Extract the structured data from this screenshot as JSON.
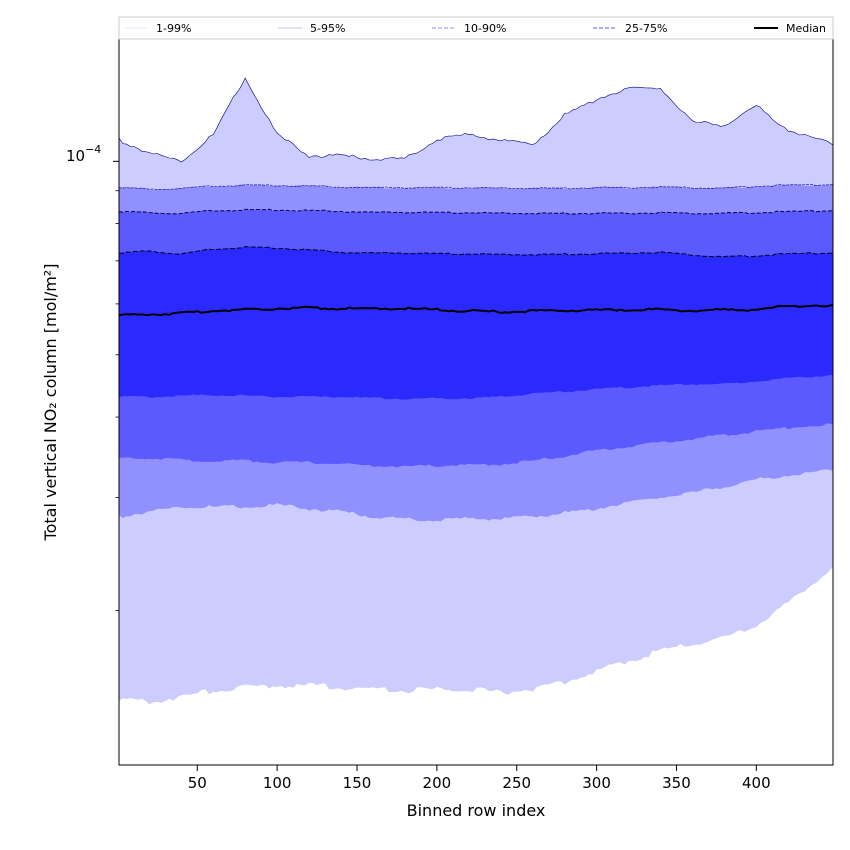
{
  "chart_data": {
    "type": "area",
    "title": "",
    "xlabel": "Binned row index",
    "ylabel": "Total vertical NO₂ column [mol/m²]",
    "yscale": "log",
    "xlim": [
      1,
      448
    ],
    "ylim": [
      1.15e-05,
      0.000155
    ],
    "xticks": [
      50,
      100,
      150,
      200,
      250,
      300,
      350,
      400
    ],
    "ytick_label_text": "10",
    "ytick_label_exponent": "−4",
    "ytick_major_value": 0.0001,
    "ytick_minor_values": [
      2e-05,
      3e-05,
      4e-05,
      5e-05,
      6e-05,
      7e-05,
      8e-05,
      9e-05
    ],
    "legend_location": "top",
    "colors": {
      "band_1_99": "#ccccff",
      "band_5_95": "#9090ff",
      "band_10_90": "#5a5aff",
      "band_25_75": "#2a2aff",
      "outline": "#000088",
      "median": "#000000"
    },
    "legend": [
      {
        "label": "1-99%",
        "style": "solid",
        "color": "#e6e6ff"
      },
      {
        "label": "5-95%",
        "style": "solid",
        "color": "#c0c0ff"
      },
      {
        "label": "10-90%",
        "style": "dashed",
        "color": "#9090ff"
      },
      {
        "label": "25-75%",
        "style": "dashed",
        "color": "#5a5aff"
      },
      {
        "label": "Median",
        "style": "solid",
        "color": "#000000"
      }
    ],
    "x": [
      1,
      20,
      40,
      60,
      80,
      100,
      120,
      140,
      160,
      180,
      200,
      220,
      240,
      260,
      280,
      300,
      320,
      340,
      360,
      380,
      400,
      420,
      448
    ],
    "series": [
      {
        "name": "p1",
        "values": [
          1.46e-05,
          1.44e-05,
          1.47e-05,
          1.5e-05,
          1.52e-05,
          1.53e-05,
          1.53e-05,
          1.52e-05,
          1.51e-05,
          1.5e-05,
          1.51e-05,
          1.51e-05,
          1.49e-05,
          1.51e-05,
          1.55e-05,
          1.61e-05,
          1.67e-05,
          1.73e-05,
          1.78e-05,
          1.81e-05,
          1.9e-05,
          2.05e-05,
          2.34e-05
        ]
      },
      {
        "name": "p5",
        "values": [
          2.8e-05,
          2.85e-05,
          2.9e-05,
          2.9e-05,
          2.9e-05,
          2.92e-05,
          2.88e-05,
          2.85e-05,
          2.8e-05,
          2.78e-05,
          2.76e-05,
          2.78e-05,
          2.78e-05,
          2.8e-05,
          2.84e-05,
          2.88e-05,
          2.95e-05,
          3e-05,
          3.05e-05,
          3.12e-05,
          3.2e-05,
          3.25e-05,
          3.3e-05
        ]
      },
      {
        "name": "p10",
        "values": [
          3.45e-05,
          3.45e-05,
          3.43e-05,
          3.42e-05,
          3.42e-05,
          3.4e-05,
          3.4e-05,
          3.38e-05,
          3.36e-05,
          3.35e-05,
          3.36e-05,
          3.37e-05,
          3.38e-05,
          3.42e-05,
          3.48e-05,
          3.55e-05,
          3.6e-05,
          3.65e-05,
          3.7e-05,
          3.75e-05,
          3.8e-05,
          3.85e-05,
          3.9e-05
        ]
      },
      {
        "name": "p25",
        "values": [
          4.3e-05,
          4.3e-05,
          4.32e-05,
          4.33e-05,
          4.32e-05,
          4.3e-05,
          4.3e-05,
          4.3e-05,
          4.28e-05,
          4.27e-05,
          4.28e-05,
          4.28e-05,
          4.3e-05,
          4.35e-05,
          4.38e-05,
          4.42e-05,
          4.45e-05,
          4.48e-05,
          4.5e-05,
          4.5e-05,
          4.55e-05,
          4.6e-05,
          4.65e-05
        ]
      },
      {
        "name": "p50",
        "values": [
          5.75e-05,
          5.78e-05,
          5.8e-05,
          5.85e-05,
          5.88e-05,
          5.9e-05,
          5.92e-05,
          5.9e-05,
          5.9e-05,
          5.9e-05,
          5.88e-05,
          5.85e-05,
          5.83e-05,
          5.85e-05,
          5.86e-05,
          5.87e-05,
          5.88e-05,
          5.88e-05,
          5.86e-05,
          5.87e-05,
          5.88e-05,
          5.95e-05,
          5.98e-05
        ]
      },
      {
        "name": "p75",
        "values": [
          7.2e-05,
          7.25e-05,
          7.18e-05,
          7.3e-05,
          7.35e-05,
          7.33e-05,
          7.28e-05,
          7.22e-05,
          7.2e-05,
          7.2e-05,
          7.18e-05,
          7.18e-05,
          7.16e-05,
          7.16e-05,
          7.17e-05,
          7.18e-05,
          7.2e-05,
          7.22e-05,
          7.15e-05,
          7.1e-05,
          7.13e-05,
          7.18e-05,
          7.2e-05
        ]
      },
      {
        "name": "p90",
        "values": [
          8.35e-05,
          8.32e-05,
          8.3e-05,
          8.38e-05,
          8.4e-05,
          8.4e-05,
          8.38e-05,
          8.36e-05,
          8.33e-05,
          8.33e-05,
          8.32e-05,
          8.32e-05,
          8.3e-05,
          8.3e-05,
          8.3e-05,
          8.3e-05,
          8.3e-05,
          8.32e-05,
          8.3e-05,
          8.3e-05,
          8.32e-05,
          8.35e-05,
          8.38e-05
        ]
      },
      {
        "name": "p95",
        "values": [
          9.1e-05,
          9.05e-05,
          9.08e-05,
          9.15e-05,
          9.18e-05,
          9.17e-05,
          9.15e-05,
          9.12e-05,
          9.1e-05,
          9.1e-05,
          9.1e-05,
          9.1e-05,
          9.08e-05,
          9.08e-05,
          9.08e-05,
          9.1e-05,
          9.1e-05,
          9.12e-05,
          9.1e-05,
          9.08e-05,
          9.15e-05,
          9.18e-05,
          9.2e-05
        ]
      },
      {
        "name": "p99",
        "values": [
          0.000108,
          0.000103,
          0.0001,
          0.00011,
          0.000135,
          0.00011,
          0.000102,
          0.000102,
          0.000101,
          0.000101,
          0.000108,
          0.00011,
          0.000108,
          0.000106,
          0.000118,
          0.000125,
          0.00013,
          0.00013,
          0.000115,
          0.000114,
          0.000122,
          0.000112,
          0.000106
        ]
      }
    ]
  }
}
